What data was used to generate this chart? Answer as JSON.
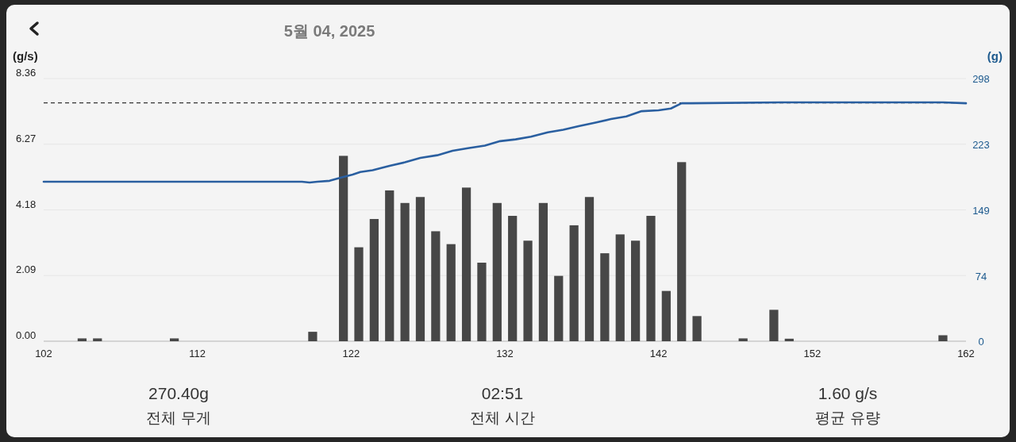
{
  "chart_data": {
    "type": "bar",
    "title": "5월 04, 2025",
    "ylabel": "(g/s)",
    "y2label": "(g)",
    "xlim": [
      102,
      162
    ],
    "xticks": [
      102,
      112,
      122,
      132,
      142,
      152,
      162
    ],
    "ylim": [
      0,
      8.36
    ],
    "yticks": [
      {
        "value": 0,
        "label": "0.00"
      },
      2.09,
      4.18,
      6.27,
      8.36
    ],
    "y2lim": [
      0,
      298
    ],
    "y2ticks": [
      0,
      74,
      149,
      223,
      298
    ],
    "grid": "y",
    "series": [
      {
        "color": "#474747",
        "x": [
          104.5,
          105.5,
          110.5,
          119.5,
          121.5,
          122.5,
          123.5,
          124.5,
          125.5,
          126.5,
          127.5,
          128.5,
          129.5,
          130.5,
          131.5,
          132.5,
          133.5,
          134.5,
          135.5,
          136.5,
          137.5,
          138.5,
          139.5,
          140.5,
          141.5,
          142.5,
          143.5,
          144.5,
          147.5,
          149.5,
          150.5,
          160.5
        ],
        "values": [
          0.09,
          0.09,
          0.09,
          0.3,
          5.9,
          2.99,
          3.89,
          4.8,
          4.4,
          4.59,
          3.5,
          3.09,
          4.89,
          2.5,
          4.4,
          3.99,
          3.2,
          4.4,
          2.08,
          3.69,
          4.59,
          2.8,
          3.4,
          3.2,
          3.99,
          1.6,
          5.7,
          0.8,
          0.09,
          1.0,
          0.08,
          0.19
        ]
      },
      {
        "type": "line",
        "axis": "y2",
        "color": "#2a5fa0",
        "line_style": "solid",
        "marker": "none",
        "x": [
          102,
          118.8,
          119.3,
          119.8,
          120.6,
          121.4,
          122.1,
          122.6,
          123.4,
          124.5,
          125.5,
          126.5,
          127.6,
          128.6,
          129.6,
          130.7,
          131.7,
          132.7,
          133.7,
          134.8,
          135.8,
          136.8,
          137.9,
          138.9,
          139.9,
          140.9,
          142.0,
          142.8,
          143.5,
          144.1,
          150,
          160.5,
          162
        ],
        "values": [
          181,
          181,
          180,
          181,
          182,
          186,
          189,
          192,
          194,
          199,
          203,
          208,
          211,
          216,
          219,
          222,
          227,
          229,
          232,
          237,
          240,
          244,
          248,
          252,
          255,
          261,
          262,
          264,
          270,
          270,
          271,
          271,
          270
        ]
      }
    ],
    "ref_lines": [
      {
        "axis": "y2",
        "value": 270.4,
        "color": "#333333",
        "line_style": "dashed"
      }
    ],
    "annotations": [
      "270.40g",
      "전체 무게",
      "02:51",
      "전체 시간",
      "1.60 g/s",
      "평균 유량"
    ]
  }
}
